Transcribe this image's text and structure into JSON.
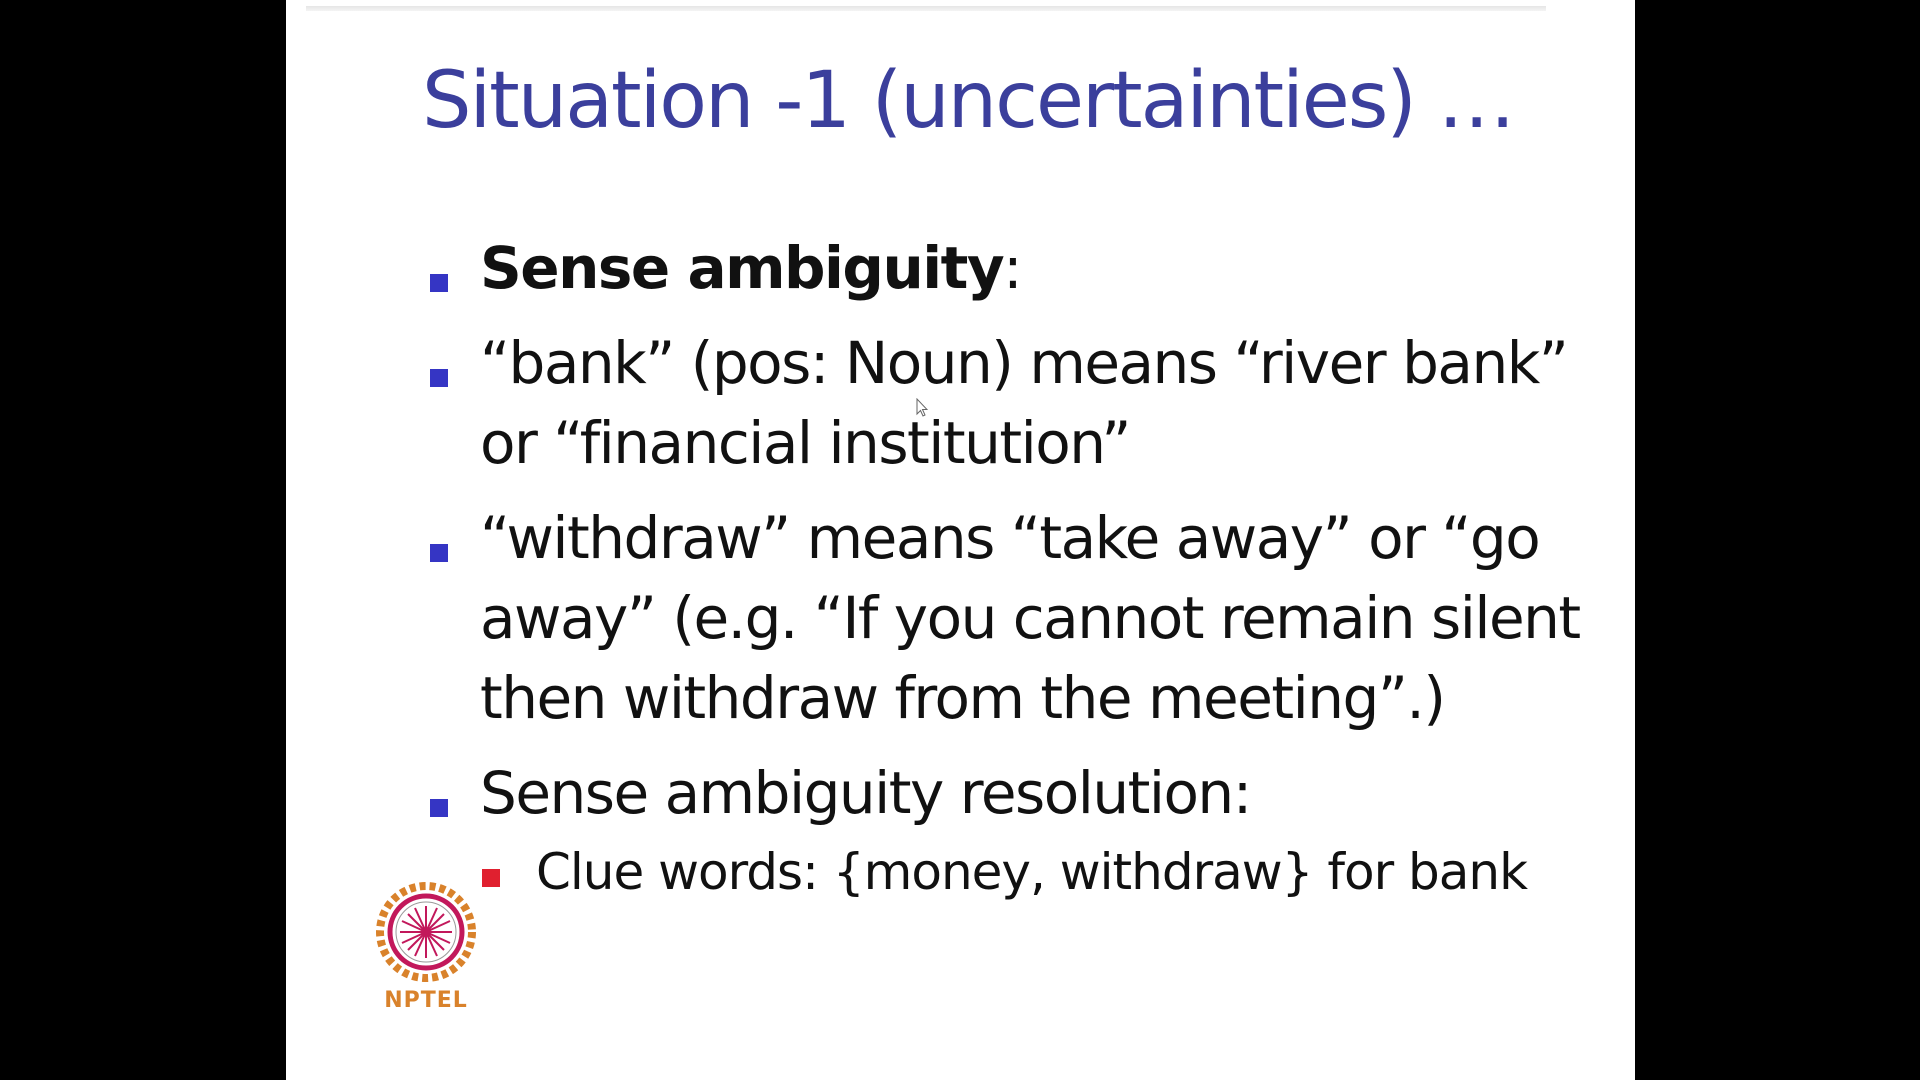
{
  "slide": {
    "title": "Situation -1 (uncertainties) …",
    "bullets": [
      {
        "strong": "Sense ambiguity",
        "rest": ":"
      },
      {
        "strong": "",
        "rest": "“bank” (pos: Noun) means “river bank” or “financial institution”"
      },
      {
        "strong": "",
        "rest": "“withdraw” means “take away” or “go away” (e.g. “If you cannot remain silent then withdraw from the meeting”.)"
      },
      {
        "strong": "",
        "rest": "Sense ambiguity resolution:"
      }
    ],
    "sub_bullets": [
      "Clue words: {money, withdraw} for bank"
    ],
    "logo_text": "NPTEL"
  },
  "colors": {
    "title": "#3b3f9c",
    "bullet": "#3535c4",
    "sub_bullet": "#e0202f",
    "logo": "#d9822b"
  },
  "icons": {
    "logo": "nptel-logo-icon",
    "cursor": "mouse-cursor-icon"
  }
}
